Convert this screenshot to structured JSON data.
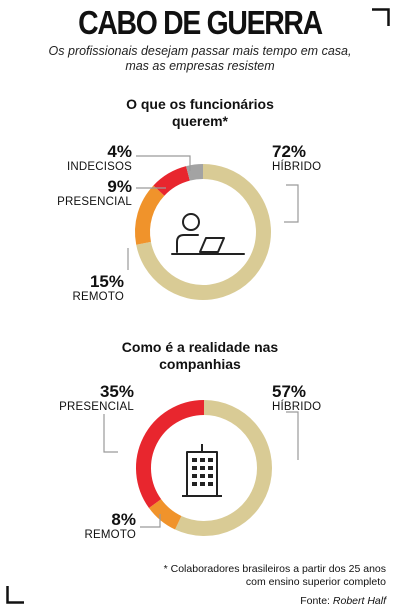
{
  "header": {
    "title": "CABO DE GUERRA",
    "subtitle_line1": "Os profissionais desejam passar mais tempo em casa,",
    "subtitle_line2": "mas as empresas resistem"
  },
  "chart_data": [
    {
      "type": "donut",
      "title_line1": "O que os funcionários",
      "title_line2": "querem*",
      "center_icon": "person-at-laptop-icon",
      "slices": [
        {
          "name": "HÍBRIDO",
          "value": 72,
          "label": "72%",
          "color": "#d9cb95"
        },
        {
          "name": "REMOTO",
          "value": 15,
          "label": "15%",
          "color": "#f0932b"
        },
        {
          "name": "PRESENCIAL",
          "value": 9,
          "label": "9%",
          "color": "#e8262e"
        },
        {
          "name": "INDECISOS",
          "value": 4,
          "label": "4%",
          "color": "#a3a3a3"
        }
      ]
    },
    {
      "type": "donut",
      "title_line1": "Como é a realidade nas",
      "title_line2": "companhias",
      "center_icon": "office-building-icon",
      "slices": [
        {
          "name": "HÍBRIDO",
          "value": 57,
          "label": "57%",
          "color": "#d9cb95"
        },
        {
          "name": "REMOTO",
          "value": 8,
          "label": "8%",
          "color": "#f0932b"
        },
        {
          "name": "PRESENCIAL",
          "value": 35,
          "label": "35%",
          "color": "#e8262e"
        }
      ]
    }
  ],
  "footnote": {
    "line1": "* Colaboradores brasileiros a partir dos 25 anos",
    "line2": "com ensino superior completo",
    "source_prefix": "Fonte: ",
    "source_name": "Robert Half"
  }
}
